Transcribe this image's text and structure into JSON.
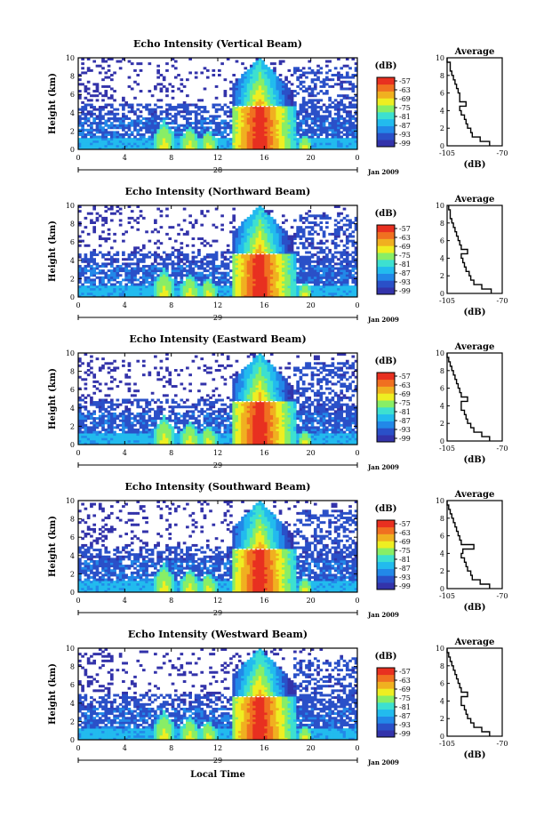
{
  "colors": {
    "scale": [
      "#3333aa",
      "#2a50c8",
      "#2288e8",
      "#22bbee",
      "#3de0d0",
      "#88ee66",
      "#eeee22",
      "#f0b020",
      "#f07020",
      "#e83020"
    ],
    "background": "#ffffff",
    "frame": "#000000"
  },
  "chart_data": [
    {
      "type": "heatmap",
      "title": "Echo Intensity (Vertical Beam)",
      "ylabel": "Height (km)",
      "yticks": [
        "0",
        "2",
        "4",
        "6",
        "8",
        "10"
      ],
      "xticks": [
        "0",
        "4",
        "8",
        "12",
        "16",
        "20",
        "0"
      ],
      "xlim": [
        0,
        24
      ],
      "ylim": [
        0,
        10
      ],
      "date_label": "28",
      "month_label": "Jan 2009",
      "colorbar": {
        "label": "(dB)",
        "ticks": [
          "-57",
          "-63",
          "-69",
          "-75",
          "-81",
          "-87",
          "-93",
          "-99"
        ]
      },
      "profile": {
        "title": "Average",
        "xlabel": "(dB)",
        "xticks": [
          "-105",
          "-70"
        ],
        "yticks": [
          "0",
          "2",
          "4",
          "6",
          "8",
          "10"
        ],
        "xlim": [
          -105,
          -70
        ],
        "ylim": [
          0,
          10
        ],
        "height": [
          0,
          0.5,
          1,
          1.5,
          2,
          2.5,
          3,
          3.5,
          4,
          4.5,
          5,
          5.5,
          6,
          6.5,
          7,
          7.5,
          8,
          8.5,
          9,
          9.5
        ],
        "db": [
          -78,
          -84,
          -89,
          -90,
          -92,
          -93,
          -94,
          -96,
          -97,
          -93,
          -97,
          -97,
          -98,
          -99,
          -100,
          -101,
          -102,
          -103,
          -103,
          -105
        ]
      }
    },
    {
      "type": "heatmap",
      "title": "Echo Intensity (Northward Beam)",
      "ylabel": "Height (km)",
      "yticks": [
        "0",
        "2",
        "4",
        "6",
        "8",
        "10"
      ],
      "xticks": [
        "0",
        "4",
        "8",
        "12",
        "16",
        "20",
        "0"
      ],
      "xlim": [
        0,
        24
      ],
      "ylim": [
        0,
        10
      ],
      "date_label": "29",
      "month_label": "Jan 2009",
      "colorbar": {
        "label": "(dB)",
        "ticks": [
          "-57",
          "-63",
          "-69",
          "-75",
          "-81",
          "-87",
          "-93",
          "-99"
        ]
      },
      "profile": {
        "title": "Average",
        "xlabel": "(dB)",
        "xticks": [
          "-105",
          "-70"
        ],
        "yticks": [
          "0",
          "2",
          "4",
          "6",
          "8",
          "10"
        ],
        "xlim": [
          -105,
          -70
        ],
        "ylim": [
          0,
          10
        ],
        "height": [
          0,
          0.5,
          1,
          1.5,
          2,
          2.5,
          3,
          3.5,
          4,
          4.5,
          5,
          5.5,
          6,
          6.5,
          7,
          7.5,
          8,
          8.5,
          9,
          9.5
        ],
        "db": [
          -77,
          -83,
          -88,
          -90,
          -91,
          -93,
          -94,
          -95,
          -96,
          -92,
          -96,
          -97,
          -98,
          -99,
          -100,
          -101,
          -102,
          -103,
          -103,
          -104
        ]
      }
    },
    {
      "type": "heatmap",
      "title": "Echo Intensity (Eastward Beam)",
      "ylabel": "Height (km)",
      "yticks": [
        "0",
        "2",
        "4",
        "6",
        "8",
        "10"
      ],
      "xticks": [
        "0",
        "4",
        "8",
        "12",
        "16",
        "20",
        "0"
      ],
      "xlim": [
        0,
        24
      ],
      "ylim": [
        0,
        10
      ],
      "date_label": "29",
      "month_label": "Jan 2009",
      "colorbar": {
        "label": "(dB)",
        "ticks": [
          "-57",
          "-63",
          "-69",
          "-75",
          "-81",
          "-87",
          "-93",
          "-99"
        ]
      },
      "profile": {
        "title": "Average",
        "xlabel": "(dB)",
        "xticks": [
          "-105",
          "-70"
        ],
        "yticks": [
          "0",
          "2",
          "4",
          "6",
          "8",
          "10"
        ],
        "xlim": [
          -105,
          -70
        ],
        "ylim": [
          0,
          10
        ],
        "height": [
          0,
          0.5,
          1,
          1.5,
          2,
          2.5,
          3,
          3.5,
          4,
          4.5,
          5,
          5.5,
          6,
          6.5,
          7,
          7.5,
          8,
          8.5,
          9,
          9.5
        ],
        "db": [
          -78,
          -83,
          -88,
          -90,
          -92,
          -93,
          -94,
          -96,
          -96,
          -92,
          -96,
          -97,
          -98,
          -99,
          -100,
          -101,
          -102,
          -103,
          -104,
          -105
        ]
      }
    },
    {
      "type": "heatmap",
      "title": "Echo Intensity (Southward Beam)",
      "ylabel": "Height (km)",
      "yticks": [
        "0",
        "2",
        "4",
        "6",
        "8",
        "10"
      ],
      "xticks": [
        "0",
        "4",
        "8",
        "12",
        "16",
        "20",
        "0"
      ],
      "xlim": [
        0,
        24
      ],
      "ylim": [
        0,
        10
      ],
      "date_label": "29",
      "month_label": "Jan 2009",
      "colorbar": {
        "label": "(dB)",
        "ticks": [
          "-57",
          "-63",
          "-69",
          "-75",
          "-81",
          "-87",
          "-93",
          "-99"
        ]
      },
      "profile": {
        "title": "Average",
        "xlabel": "(dB)",
        "xticks": [
          "-105",
          "-70"
        ],
        "yticks": [
          "0",
          "2",
          "4",
          "6",
          "8",
          "10"
        ],
        "xlim": [
          -105,
          -70
        ],
        "ylim": [
          0,
          10
        ],
        "height": [
          0,
          0.5,
          1,
          1.5,
          2,
          2.5,
          3,
          3.5,
          4,
          4.5,
          5,
          5.5,
          6,
          6.5,
          7,
          7.5,
          8,
          8.5,
          9,
          9.5
        ],
        "db": [
          -78,
          -84,
          -89,
          -90,
          -92,
          -93,
          -94,
          -96,
          -95,
          -88,
          -96,
          -97,
          -98,
          -99,
          -100,
          -101,
          -102,
          -103,
          -104,
          -105
        ]
      }
    },
    {
      "type": "heatmap",
      "title": "Echo Intensity (Westward Beam)",
      "ylabel": "Height (km)",
      "yticks": [
        "0",
        "2",
        "4",
        "6",
        "8",
        "10"
      ],
      "xticks": [
        "0",
        "4",
        "8",
        "12",
        "16",
        "20",
        "0"
      ],
      "xlim": [
        0,
        24
      ],
      "ylim": [
        0,
        10
      ],
      "date_label": "29",
      "month_label": "Jan 2009",
      "xlabel": "Local Time",
      "colorbar": {
        "label": "(dB)",
        "ticks": [
          "-57",
          "-63",
          "-69",
          "-75",
          "-81",
          "-87",
          "-93",
          "-99"
        ]
      },
      "profile": {
        "title": "Average",
        "xlabel": "(dB)",
        "xticks": [
          "-105",
          "-70"
        ],
        "yticks": [
          "0",
          "2",
          "4",
          "6",
          "8",
          "10"
        ],
        "xlim": [
          -105,
          -70
        ],
        "ylim": [
          0,
          10
        ],
        "height": [
          0,
          0.5,
          1,
          1.5,
          2,
          2.5,
          3,
          3.5,
          4,
          4.5,
          5,
          5.5,
          6,
          6.5,
          7,
          7.5,
          8,
          8.5,
          9,
          9.5
        ],
        "db": [
          -78,
          -83,
          -88,
          -90,
          -92,
          -93,
          -94,
          -96,
          -96,
          -92,
          -96,
          -97,
          -98,
          -99,
          -100,
          -101,
          -102,
          -103,
          -104,
          -105
        ]
      }
    }
  ]
}
